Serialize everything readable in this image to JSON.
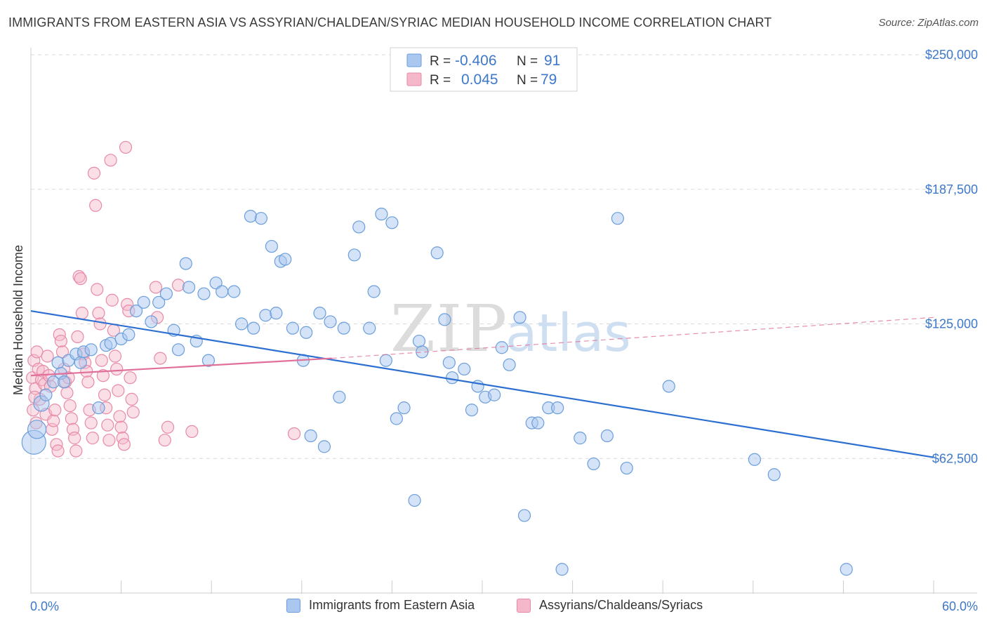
{
  "header": {
    "title": "IMMIGRANTS FROM EASTERN ASIA VS ASSYRIAN/CHALDEAN/SYRIAC MEDIAN HOUSEHOLD INCOME CORRELATION CHART",
    "source": "Source: ZipAtlas.com"
  },
  "watermark": {
    "zip": "ZIP",
    "atlas": "atlas"
  },
  "legend_top": {
    "r_label": "R =",
    "n_label": "N =",
    "rows": [
      {
        "r": "-0.406",
        "n": "91"
      },
      {
        "r": "0.045",
        "n": "79"
      }
    ]
  },
  "colors": {
    "blue_fill": "#aac8ef",
    "blue_stroke": "#6b9edb",
    "blue_line": "#2c6fd1",
    "pink_fill": "#f5b8ca",
    "pink_stroke": "#e88aa8",
    "pink_line": "#e0709a",
    "axis_text": "#3d78c9",
    "grid": "#d9d9d9"
  },
  "chart_data": {
    "type": "scatter",
    "title": "IMMIGRANTS FROM EASTERN ASIA VS ASSYRIAN/CHALDEAN/SYRIAC MEDIAN HOUSEHOLD INCOME CORRELATION CHART",
    "xlabel": "",
    "ylabel": "Median Household Income",
    "xlim": [
      0,
      60
    ],
    "ylim": [
      0,
      250000
    ],
    "x_tick_labels": [
      "0.0%",
      "60.0%"
    ],
    "y_tick_labels": [
      "$62,500",
      "$125,000",
      "$187,500",
      "$250,000"
    ],
    "y_ticks": [
      62500,
      125000,
      187500,
      250000
    ],
    "grid": "horizontal dashed",
    "legend_position": "top-center",
    "series": [
      {
        "name": "Immigrants from Eastern Asia",
        "color": "blue",
        "r": -0.406,
        "n": 91,
        "trend": {
          "x": [
            0,
            60
          ],
          "y": [
            131000,
            63000
          ],
          "style": "solid"
        },
        "points": [
          [
            0.2,
            70000
          ],
          [
            0.4,
            76000
          ],
          [
            0.7,
            88000
          ],
          [
            1.0,
            92000
          ],
          [
            1.5,
            98000
          ],
          [
            1.8,
            107000
          ],
          [
            2.0,
            102000
          ],
          [
            2.2,
            98000
          ],
          [
            2.5,
            108000
          ],
          [
            3.0,
            111000
          ],
          [
            3.3,
            107000
          ],
          [
            3.5,
            112000
          ],
          [
            4.0,
            113000
          ],
          [
            4.5,
            86000
          ],
          [
            5.0,
            115000
          ],
          [
            5.3,
            116000
          ],
          [
            6.0,
            118000
          ],
          [
            6.5,
            120000
          ],
          [
            7.0,
            131000
          ],
          [
            7.5,
            135000
          ],
          [
            8.0,
            126000
          ],
          [
            8.5,
            135000
          ],
          [
            9.0,
            139000
          ],
          [
            9.5,
            122000
          ],
          [
            9.8,
            113000
          ],
          [
            10.3,
            153000
          ],
          [
            10.5,
            142000
          ],
          [
            11.0,
            117000
          ],
          [
            11.5,
            139000
          ],
          [
            11.8,
            108000
          ],
          [
            12.3,
            144000
          ],
          [
            12.7,
            140000
          ],
          [
            13.5,
            140000
          ],
          [
            14.0,
            125000
          ],
          [
            14.6,
            175000
          ],
          [
            14.8,
            123000
          ],
          [
            15.3,
            174000
          ],
          [
            15.6,
            129000
          ],
          [
            16.0,
            161000
          ],
          [
            16.3,
            130000
          ],
          [
            16.6,
            154000
          ],
          [
            16.9,
            155000
          ],
          [
            17.4,
            123000
          ],
          [
            18.1,
            108000
          ],
          [
            18.3,
            121000
          ],
          [
            18.6,
            73000
          ],
          [
            19.2,
            130000
          ],
          [
            19.5,
            68000
          ],
          [
            19.9,
            126000
          ],
          [
            20.5,
            91000
          ],
          [
            20.8,
            123000
          ],
          [
            21.5,
            157000
          ],
          [
            21.8,
            170000
          ],
          [
            22.5,
            123000
          ],
          [
            22.8,
            140000
          ],
          [
            23.3,
            176000
          ],
          [
            23.6,
            108000
          ],
          [
            24.0,
            172000
          ],
          [
            24.3,
            81000
          ],
          [
            24.8,
            86000
          ],
          [
            25.5,
            43000
          ],
          [
            25.8,
            117000
          ],
          [
            26.0,
            112000
          ],
          [
            27.0,
            158000
          ],
          [
            27.5,
            127000
          ],
          [
            27.8,
            107000
          ],
          [
            28.0,
            100000
          ],
          [
            28.8,
            104000
          ],
          [
            29.3,
            85000
          ],
          [
            29.7,
            96000
          ],
          [
            30.2,
            91000
          ],
          [
            30.8,
            92000
          ],
          [
            31.3,
            114000
          ],
          [
            31.8,
            106000
          ],
          [
            32.5,
            128000
          ],
          [
            32.8,
            36000
          ],
          [
            33.3,
            79000
          ],
          [
            33.7,
            79000
          ],
          [
            34.4,
            86000
          ],
          [
            35.0,
            86000
          ],
          [
            35.3,
            11000
          ],
          [
            36.5,
            72000
          ],
          [
            37.4,
            60000
          ],
          [
            38.3,
            73000
          ],
          [
            39.0,
            174000
          ],
          [
            39.6,
            58000
          ],
          [
            42.4,
            96000
          ],
          [
            48.1,
            62000
          ],
          [
            49.4,
            55000
          ],
          [
            54.2,
            11000
          ]
        ]
      },
      {
        "name": "Assyrians/Chaldeans/Syriacs",
        "color": "pink",
        "r": 0.045,
        "n": 79,
        "trend": {
          "x": [
            0,
            20,
            60
          ],
          "y": [
            101000,
            109000,
            128000
          ],
          "style": "solid to 20%, dashed after"
        },
        "points": [
          [
            0.1,
            100000
          ],
          [
            0.2,
            108000
          ],
          [
            0.3,
            95000
          ],
          [
            0.4,
            112000
          ],
          [
            0.5,
            104000
          ],
          [
            0.6,
            90000
          ],
          [
            0.7,
            99000
          ],
          [
            0.8,
            103000
          ],
          [
            0.9,
            97000
          ],
          [
            1.0,
            83000
          ],
          [
            1.1,
            110000
          ],
          [
            1.2,
            101000
          ],
          [
            1.3,
            96000
          ],
          [
            1.4,
            76000
          ],
          [
            1.5,
            80000
          ],
          [
            1.6,
            85000
          ],
          [
            1.7,
            69000
          ],
          [
            1.8,
            66000
          ],
          [
            1.9,
            120000
          ],
          [
            2.0,
            117000
          ],
          [
            2.1,
            112000
          ],
          [
            2.2,
            104000
          ],
          [
            2.3,
            98000
          ],
          [
            2.4,
            93000
          ],
          [
            2.5,
            100000
          ],
          [
            2.6,
            87000
          ],
          [
            2.7,
            81000
          ],
          [
            2.8,
            76000
          ],
          [
            2.9,
            72000
          ],
          [
            3.0,
            66000
          ],
          [
            3.1,
            119000
          ],
          [
            3.2,
            147000
          ],
          [
            3.3,
            146000
          ],
          [
            3.4,
            130000
          ],
          [
            3.5,
            111000
          ],
          [
            3.6,
            107000
          ],
          [
            3.7,
            103000
          ],
          [
            3.8,
            98000
          ],
          [
            3.9,
            85000
          ],
          [
            4.0,
            79000
          ],
          [
            4.1,
            72000
          ],
          [
            4.2,
            195000
          ],
          [
            4.3,
            180000
          ],
          [
            4.4,
            141000
          ],
          [
            4.5,
            130000
          ],
          [
            4.6,
            125000
          ],
          [
            4.7,
            108000
          ],
          [
            4.8,
            101000
          ],
          [
            4.9,
            92000
          ],
          [
            5.0,
            86000
          ],
          [
            5.1,
            78000
          ],
          [
            5.2,
            71000
          ],
          [
            5.3,
            201000
          ],
          [
            5.4,
            136000
          ],
          [
            5.5,
            122000
          ],
          [
            5.6,
            110000
          ],
          [
            5.7,
            104000
          ],
          [
            5.8,
            94000
          ],
          [
            5.9,
            82000
          ],
          [
            6.0,
            77000
          ],
          [
            6.1,
            72000
          ],
          [
            6.2,
            69000
          ],
          [
            6.3,
            207000
          ],
          [
            6.4,
            134000
          ],
          [
            6.5,
            131000
          ],
          [
            6.6,
            100000
          ],
          [
            6.7,
            90000
          ],
          [
            6.8,
            84000
          ],
          [
            8.3,
            142000
          ],
          [
            8.4,
            128000
          ],
          [
            8.6,
            109000
          ],
          [
            8.9,
            71000
          ],
          [
            9.1,
            77000
          ],
          [
            9.8,
            143000
          ],
          [
            10.7,
            75000
          ],
          [
            17.5,
            74000
          ],
          [
            0.15,
            85000
          ],
          [
            0.25,
            91000
          ],
          [
            0.35,
            79000
          ]
        ]
      }
    ]
  },
  "legend_bottom": {
    "items": [
      {
        "label": "Immigrants from Eastern Asia"
      },
      {
        "label": "Assyrians/Chaldeans/Syriacs"
      }
    ]
  }
}
